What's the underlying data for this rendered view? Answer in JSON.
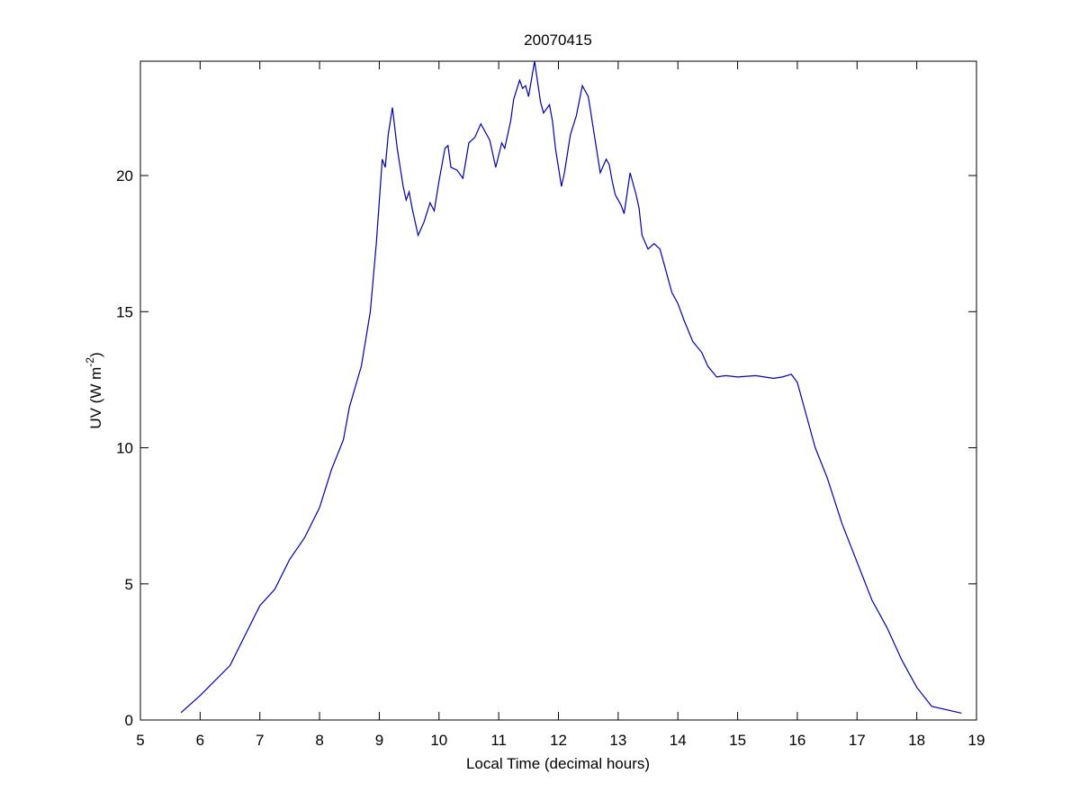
{
  "chart_data": {
    "type": "line",
    "title": "20070415",
    "xlabel": "Local Time (decimal hours)",
    "ylabel": [
      "UV (W m",
      "-2",
      ")"
    ],
    "xlim": [
      5,
      19
    ],
    "xticks": [
      5,
      6,
      7,
      8,
      9,
      10,
      11,
      12,
      13,
      14,
      15,
      16,
      17,
      18,
      19
    ],
    "ylim": [
      0,
      24.2
    ],
    "yticks": [
      0,
      5,
      10,
      15,
      20
    ],
    "series": [
      {
        "color": "#0000b0",
        "x": [
          5.68,
          6.0,
          6.5,
          7.0,
          7.25,
          7.5,
          7.75,
          8.0,
          8.2,
          8.4,
          8.5,
          8.7,
          8.85,
          8.95,
          9.05,
          9.1,
          9.15,
          9.22,
          9.3,
          9.4,
          9.45,
          9.5,
          9.55,
          9.65,
          9.75,
          9.85,
          9.92,
          10.0,
          10.1,
          10.15,
          10.2,
          10.3,
          10.4,
          10.5,
          10.6,
          10.7,
          10.85,
          10.9,
          10.95,
          11.05,
          11.1,
          11.2,
          11.25,
          11.35,
          11.4,
          11.45,
          11.5,
          11.6,
          11.7,
          11.75,
          11.85,
          11.9,
          11.95,
          12.05,
          12.1,
          12.2,
          12.3,
          12.4,
          12.5,
          12.6,
          12.7,
          12.8,
          12.85,
          12.9,
          12.95,
          13.05,
          13.1,
          13.2,
          13.3,
          13.35,
          13.4,
          13.5,
          13.6,
          13.7,
          13.8,
          13.9,
          14.0,
          14.1,
          14.25,
          14.4,
          14.5,
          14.65,
          14.8,
          15.0,
          15.3,
          15.6,
          15.75,
          15.9,
          16.0,
          16.1,
          16.3,
          16.5,
          16.75,
          17.0,
          17.25,
          17.5,
          17.75,
          18.0,
          18.25,
          18.75
        ],
        "values": [
          0.27,
          0.9,
          2.0,
          4.2,
          4.8,
          5.9,
          6.7,
          7.8,
          9.2,
          10.3,
          11.5,
          13.0,
          15.0,
          17.5,
          20.6,
          20.3,
          21.5,
          22.5,
          21.0,
          19.6,
          19.1,
          19.4,
          18.8,
          17.8,
          18.3,
          19.0,
          18.7,
          19.8,
          21.0,
          21.1,
          20.3,
          20.2,
          19.9,
          21.2,
          21.4,
          21.9,
          21.3,
          20.8,
          20.3,
          21.2,
          21.0,
          22.0,
          22.8,
          23.5,
          23.2,
          23.3,
          22.9,
          24.2,
          22.7,
          22.3,
          22.6,
          22.0,
          21.0,
          19.6,
          20.1,
          21.5,
          22.2,
          23.3,
          22.9,
          21.5,
          20.1,
          20.6,
          20.4,
          19.8,
          19.3,
          18.9,
          18.6,
          20.1,
          19.3,
          18.8,
          17.8,
          17.3,
          17.5,
          17.3,
          16.5,
          15.7,
          15.3,
          14.7,
          13.9,
          13.5,
          13.0,
          12.6,
          12.65,
          12.6,
          12.65,
          12.55,
          12.6,
          12.7,
          12.4,
          11.6,
          10.0,
          8.9,
          7.2,
          5.8,
          4.4,
          3.4,
          2.2,
          1.2,
          0.5,
          0.25
        ]
      }
    ]
  }
}
